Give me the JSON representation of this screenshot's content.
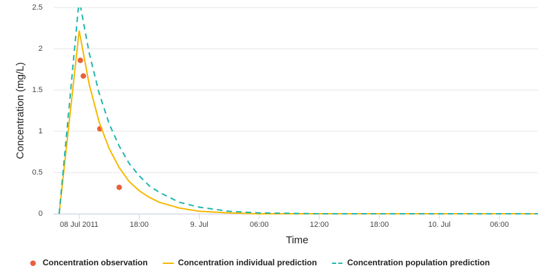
{
  "chart_data": {
    "type": "line",
    "xlabel": "Time",
    "ylabel": "Concentration (mg/L)",
    "xlim": [
      "2011-07-08T09:27",
      "2011-07-10T09:51"
    ],
    "xticks": [
      {
        "value": "2011-07-08T12:00",
        "label": "08 Jul 2011"
      },
      {
        "value": "2011-07-08T18:00",
        "label": "18:00"
      },
      {
        "value": "2011-07-09T00:00",
        "label": "9. Jul"
      },
      {
        "value": "2011-07-09T06:00",
        "label": "06:00"
      },
      {
        "value": "2011-07-09T12:00",
        "label": "12:00"
      },
      {
        "value": "2011-07-09T18:00",
        "label": "18:00"
      },
      {
        "value": "2011-07-10T00:00",
        "label": "10. Jul"
      },
      {
        "value": "2011-07-10T06:00",
        "label": "06:00"
      }
    ],
    "ylim": [
      0,
      2.5
    ],
    "yticks": [
      0,
      0.5,
      1,
      1.5,
      2,
      2.5
    ],
    "grid": true,
    "legend": "bottom",
    "series": [
      {
        "name": "Concentration observation",
        "type": "scatter",
        "color": "#e8603c",
        "x": [
          "2011-07-08T12:07",
          "2011-07-08T12:25",
          "2011-07-08T14:04",
          "2011-07-08T16:00"
        ],
        "values": [
          1.86,
          1.67,
          1.03,
          0.32
        ]
      },
      {
        "name": "Concentration individual prediction",
        "type": "line",
        "color": "#f5b800",
        "dash": false,
        "x": [
          "2011-07-08T10:00",
          "2011-07-08T11:00",
          "2011-07-08T12:00",
          "2011-07-08T13:00",
          "2011-07-08T14:00",
          "2011-07-08T15:00",
          "2011-07-08T16:00",
          "2011-07-08T17:00",
          "2011-07-08T18:00",
          "2011-07-08T19:00",
          "2011-07-08T20:00",
          "2011-07-08T22:00",
          "2011-07-09T00:00",
          "2011-07-09T03:00",
          "2011-07-09T06:00",
          "2011-07-09T12:00",
          "2011-07-10T00:00",
          "2011-07-10T09:51"
        ],
        "values": [
          0,
          1.11,
          2.22,
          1.57,
          1.11,
          0.79,
          0.56,
          0.39,
          0.28,
          0.2,
          0.14,
          0.07,
          0.03,
          0.01,
          0,
          0,
          0,
          0
        ]
      },
      {
        "name": "Concentration population prediction",
        "type": "line",
        "color": "#1fb5ad",
        "dash": true,
        "x": [
          "2011-07-08T10:00",
          "2011-07-08T11:00",
          "2011-07-08T12:00",
          "2011-07-08T13:00",
          "2011-07-08T14:00",
          "2011-07-08T15:00",
          "2011-07-08T16:00",
          "2011-07-08T17:00",
          "2011-07-08T18:00",
          "2011-07-08T19:00",
          "2011-07-08T20:00",
          "2011-07-08T22:00",
          "2011-07-09T00:00",
          "2011-07-09T03:00",
          "2011-07-09T06:00",
          "2011-07-09T12:00",
          "2011-07-10T00:00",
          "2011-07-10T09:51"
        ],
        "values": [
          0,
          1.3,
          2.6,
          1.95,
          1.46,
          1.09,
          0.82,
          0.61,
          0.46,
          0.34,
          0.26,
          0.14,
          0.08,
          0.03,
          0.01,
          0,
          0,
          0
        ]
      }
    ]
  }
}
